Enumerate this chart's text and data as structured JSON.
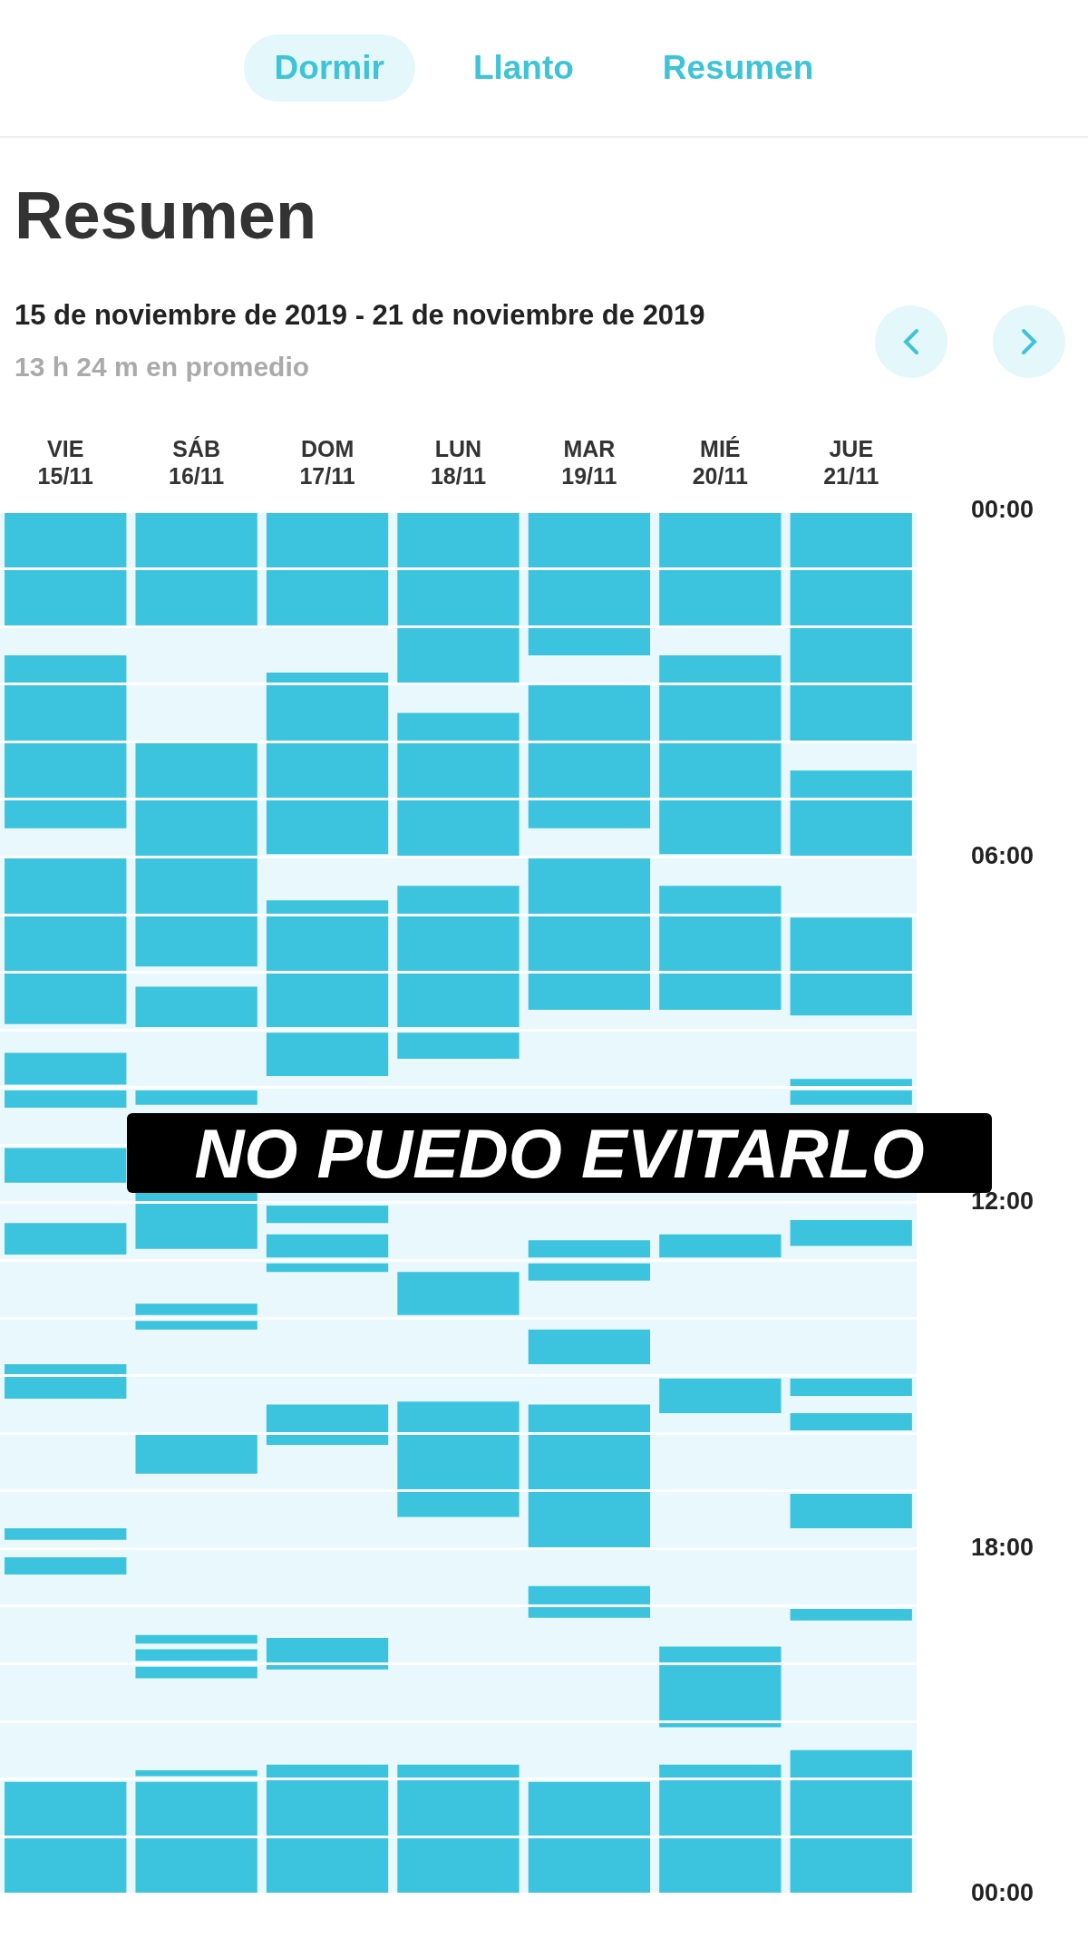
{
  "chart_data": {
    "type": "bar",
    "title": "Resumen",
    "subtitle": "15 de noviembre de 2019 - 21 de noviembre de 2019",
    "annotations": [
      "Dormir",
      "Llanto",
      "Resumen",
      "13 h 24 m en promedio",
      "NO PUEDO EVITARLO"
    ],
    "categories": [
      "VIE 15/11",
      "SÁB 16/11",
      "DOM 17/11",
      "LUN 18/11",
      "MAR 19/11",
      "MIÉ 20/11",
      "JUE 21/11"
    ],
    "ylim": [
      24,
      0
    ],
    "yticks": [
      {
        "value": 0,
        "label": "00:00"
      },
      {
        "value": 1,
        "label": null
      },
      {
        "value": 2,
        "label": null
      },
      {
        "value": 3,
        "label": null
      },
      {
        "value": 4,
        "label": null
      },
      {
        "value": 5,
        "label": null
      },
      {
        "value": 6,
        "label": "06:00"
      },
      {
        "value": 7,
        "label": null
      },
      {
        "value": 8,
        "label": null
      },
      {
        "value": 9,
        "label": null
      },
      {
        "value": 10,
        "label": null
      },
      {
        "value": 11,
        "label": null
      },
      {
        "value": 12,
        "label": "12:00"
      },
      {
        "value": 13,
        "label": null
      },
      {
        "value": 14,
        "label": null
      },
      {
        "value": 15,
        "label": null
      },
      {
        "value": 16,
        "label": null
      },
      {
        "value": 17,
        "label": null
      },
      {
        "value": 18,
        "label": "18:00"
      },
      {
        "value": 19,
        "label": null
      },
      {
        "value": 20,
        "label": null
      },
      {
        "value": 21,
        "label": null
      },
      {
        "value": 22,
        "label": null
      },
      {
        "value": 23,
        "label": null
      },
      {
        "value": 24,
        "label": "00:00"
      }
    ],
    "grid": "y",
    "series": [
      {
        "color": "#3cc3dd",
        "base": [
          0,
          0,
          0,
          0,
          0,
          0,
          0
        ],
        "values": [
          2,
          2,
          2,
          3,
          2.5,
          2,
          4
        ]
      },
      {
        "color": "#3cc3dd",
        "base": [
          2.5,
          4,
          2.8,
          3.5,
          3,
          2.5,
          4.5
        ],
        "values": [
          3,
          3.9,
          3.15,
          2.5,
          2.5,
          3.45,
          1.5
        ]
      },
      {
        "color": "#3cc3dd",
        "base": [
          6,
          8.25,
          6.75,
          6.5,
          6,
          6.5,
          7.05
        ],
        "values": [
          2.9,
          0.7,
          2.2,
          2.45,
          2.65,
          2.15,
          1.7
        ]
      },
      {
        "color": "#3cc3dd",
        "base": [
          9.4,
          10.05,
          9.05,
          9.05,
          12.65,
          12.55,
          9.85
        ],
        "values": [
          0.55,
          0.25,
          0.75,
          0.45,
          0.3,
          0.4,
          0.15
        ]
      },
      {
        "color": "#3cc3dd",
        "base": [
          10.05,
          11.8,
          12.05,
          13.2,
          13.05,
          15.05,
          10.05
        ],
        "values": [
          0.3,
          1,
          0.3,
          0.75,
          0.3,
          0.6,
          0.25
        ]
      },
      {
        "color": "#3cc3dd",
        "base": [
          11.05,
          13.75,
          12.55,
          15.45,
          14.2,
          19.7,
          12.3
        ],
        "values": [
          0.6,
          0.2,
          0.4,
          2,
          0.6,
          1.4,
          0.45
        ]
      },
      {
        "color": "#3cc3dd",
        "base": [
          12.35,
          14.05,
          13.05,
          21.75,
          15.5,
          21.75,
          15.05
        ],
        "values": [
          0.55,
          0.15,
          0.15,
          2.25,
          2.5,
          2.25,
          0.3
        ]
      },
      {
        "color": "#3cc3dd",
        "base": [
          14.8,
          16,
          15.5,
          null,
          18.65,
          null,
          15.65
        ],
        "values": [
          0.6,
          0.7,
          0.7,
          null,
          0.55,
          null,
          0.3
        ]
      },
      {
        "color": "#3cc3dd",
        "base": [
          17.65,
          19.5,
          19.55,
          null,
          22.05,
          null,
          17.05
        ],
        "values": [
          0.2,
          0.15,
          0.55,
          null,
          1.95,
          null,
          0.6
        ]
      },
      {
        "color": "#3cc3dd",
        "base": [
          18.15,
          19.75,
          21.75,
          null,
          null,
          null,
          19.05
        ],
        "values": [
          0.3,
          0.2,
          2.25,
          null,
          null,
          null,
          0.2
        ]
      },
      {
        "color": "#3cc3dd",
        "base": [
          22.05,
          20.05,
          null,
          null,
          null,
          null,
          21.5
        ],
        "values": [
          1.95,
          0.2,
          null,
          null,
          null,
          null,
          2.5
        ]
      },
      {
        "color": "#3cc3dd",
        "base": [
          null,
          21.85,
          null,
          null,
          null,
          null,
          null
        ],
        "values": [
          null,
          0.1,
          null,
          null,
          null,
          null,
          null
        ]
      },
      {
        "color": "#3cc3dd",
        "base": [
          null,
          22.05,
          null,
          null,
          null,
          null,
          null
        ],
        "values": [
          null,
          1.95,
          null,
          null,
          null,
          null,
          null
        ]
      }
    ]
  }
}
